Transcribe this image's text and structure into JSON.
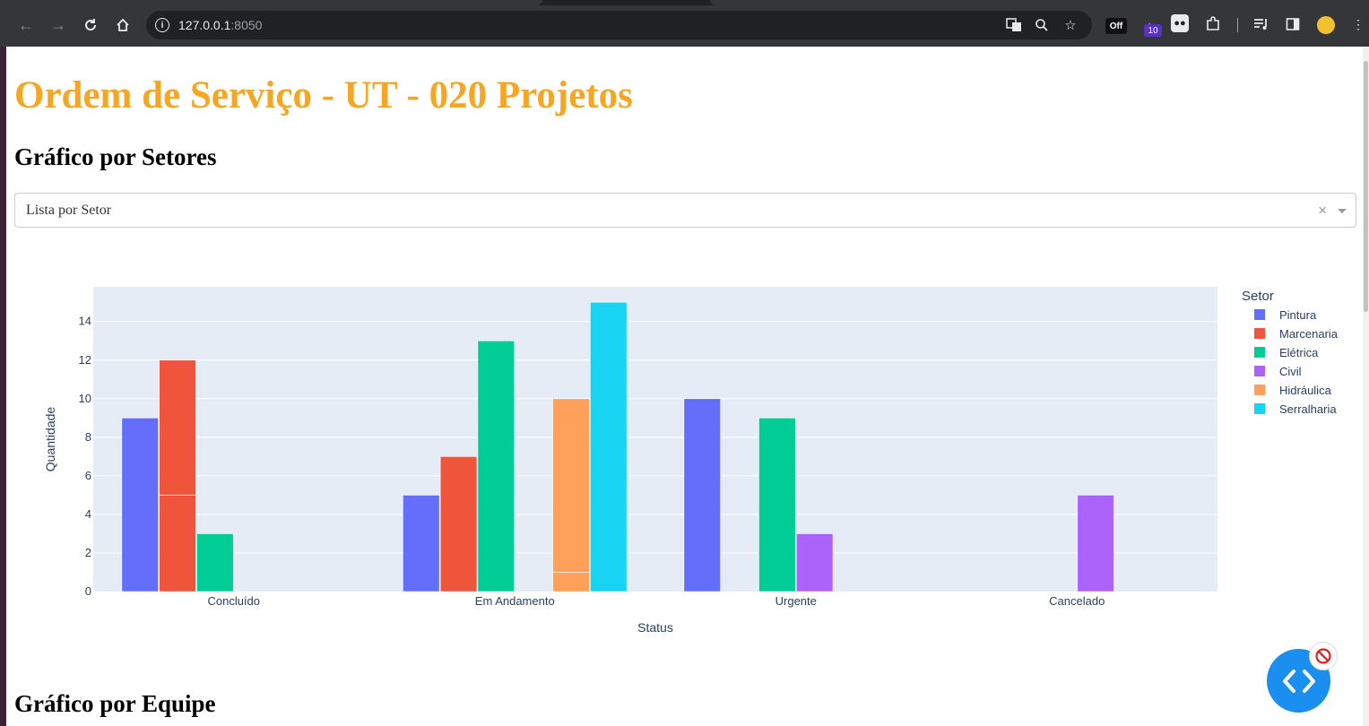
{
  "browser": {
    "url_host": "127.0.0.1",
    "url_port": ":8050",
    "ext_off_label": "Off",
    "ext_badge_count": "10"
  },
  "page": {
    "title": "Ordem de Serviço - UT - 020 Projetos",
    "section1_heading": "Gráfico por Setores",
    "section2_heading": "Gráfico por Equipe",
    "dropdown_placeholder": "Lista por Setor",
    "dropdown_clear": "×"
  },
  "chart_data": {
    "type": "bar",
    "xlabel": "Status",
    "ylabel": "Quantidade",
    "legend_title": "Setor",
    "legend_position": "right",
    "ylim": [
      0,
      15.8
    ],
    "yticks": [
      0,
      2,
      4,
      6,
      8,
      10,
      12,
      14
    ],
    "categories": [
      "Concluído",
      "Em Andamento",
      "Urgente",
      "Cancelado"
    ],
    "colors": [
      "#636efa",
      "#ef553b",
      "#00cc96",
      "#ab63fa",
      "#ffa15a",
      "#19d3f3"
    ],
    "plot_bg": "#e5ecf6",
    "series": [
      {
        "name": "Pintura",
        "values": [
          9,
          5,
          10,
          0
        ]
      },
      {
        "name": "Marcenaria",
        "values": [
          12,
          7,
          0,
          0
        ],
        "segments": [
          [
            5,
            7
          ],
          [
            7
          ],
          [],
          []
        ]
      },
      {
        "name": "Elétrica",
        "values": [
          3,
          13,
          9,
          0
        ]
      },
      {
        "name": "Civil",
        "values": [
          0,
          0,
          3,
          5
        ]
      },
      {
        "name": "Hidráulica",
        "values": [
          0,
          10,
          0,
          0
        ],
        "segments": [
          [],
          [
            1,
            9
          ],
          [],
          []
        ]
      },
      {
        "name": "Serralharia",
        "values": [
          0,
          15,
          0,
          0
        ]
      }
    ]
  }
}
